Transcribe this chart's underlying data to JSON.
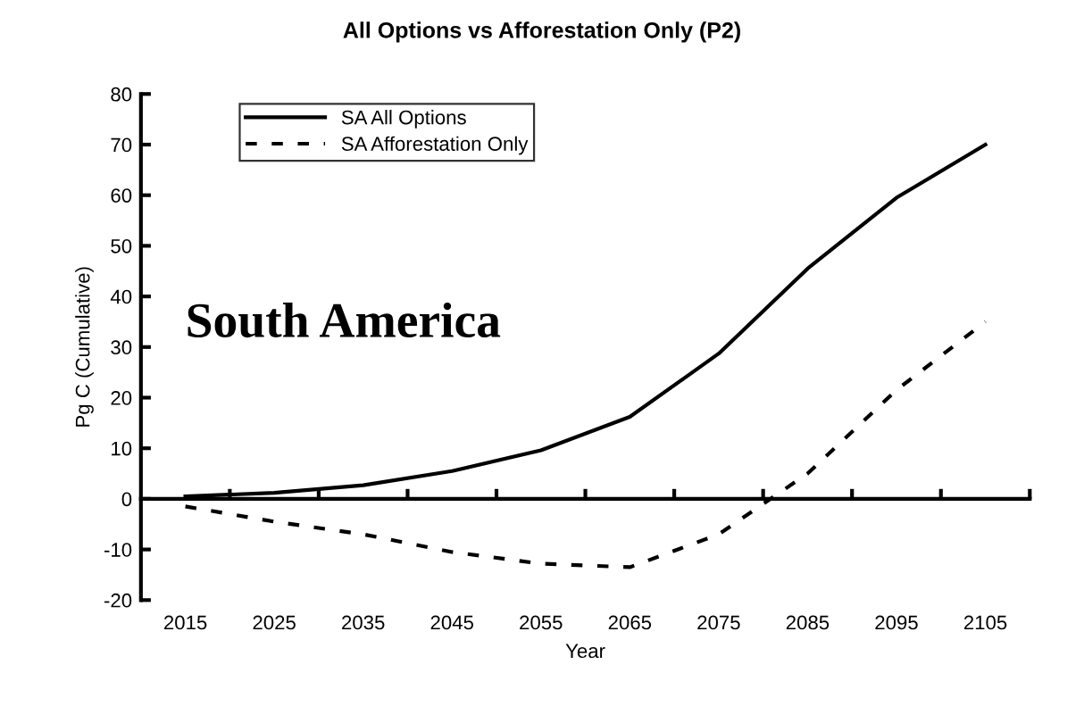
{
  "chart_data": {
    "type": "line",
    "title": "All Options vs Afforestation Only (P2)",
    "xlabel": "Year",
    "ylabel": "Pg C (Cumulative)",
    "annotations": [
      "South America"
    ],
    "categories": [
      "2015",
      "2025",
      "2035",
      "2045",
      "2055",
      "2065",
      "2075",
      "2085",
      "2095",
      "2105"
    ],
    "series": [
      {
        "name": "SA All Options",
        "color": "#000000",
        "line_style": "solid",
        "values": [
          0.5,
          1.2,
          2.7,
          5.5,
          9.6,
          16.2,
          28.7,
          45.5,
          59.5,
          70
        ]
      },
      {
        "name": "SA Afforestation Only",
        "color": "#000000",
        "line_style": "dashed",
        "values": [
          -1.5,
          -4.5,
          -7,
          -10.5,
          -12.8,
          -13.5,
          -7,
          5,
          21.5,
          35
        ]
      }
    ],
    "ylim": [
      -20,
      80
    ],
    "yticks": [
      -20,
      -10,
      0,
      10,
      20,
      30,
      40,
      50,
      60,
      70,
      80
    ],
    "legend": "top left",
    "marker": "none"
  }
}
